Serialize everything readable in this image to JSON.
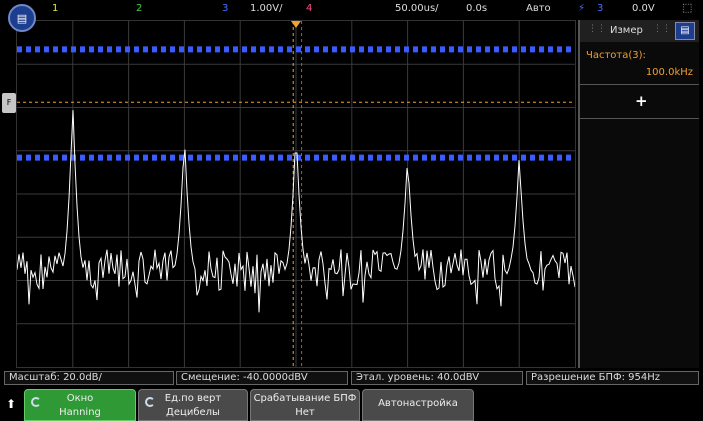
{
  "topbar": {
    "ch1": "1",
    "ch2": "2",
    "ch3": "3",
    "ch3_scale": "1.00V/",
    "ch4": "4",
    "timebase": "50.00us/",
    "delay": "0.0s",
    "mode": "Авто",
    "trigger_source": "3",
    "trigger_level": "0.0V",
    "colors": {
      "ch1": "#e8e830",
      "ch2": "#40d040",
      "ch3": "#4a6cff",
      "ch4": "#ff4a8a",
      "trigger": "#4a6cff"
    }
  },
  "home_icon": "home-icon",
  "left_marker": "F",
  "panel": {
    "title": "Измер",
    "icon": "menu-icon",
    "measurement_label": "Частота(3):",
    "measurement_value": "100.0kHz",
    "add_symbol": "+"
  },
  "info_bar": {
    "scale": "Масштаб: 20.0dB/",
    "offset": "Смещение: -40.0000dBV",
    "ref_level": "Этал. уровень: 40.0dBV",
    "resolution": "Разрешение БПФ: 954Hz"
  },
  "softkeys": [
    {
      "line1": "Окно",
      "line2": "Hanning"
    },
    {
      "line1": "Ед.по верт",
      "line2": "Децибелы"
    },
    {
      "line1": "Срабатывание БПФ",
      "line2": "Нет"
    },
    {
      "line1": "Автонастройка",
      "line2": ""
    }
  ],
  "colors": {
    "fft_trace": "#ffffff",
    "cursor": "#f0a030",
    "blue_trace": "#3a5cff",
    "grid": "#3a3a3a"
  },
  "chart_data": {
    "type": "line",
    "peak_count": 5,
    "noise_seed": 7
  }
}
